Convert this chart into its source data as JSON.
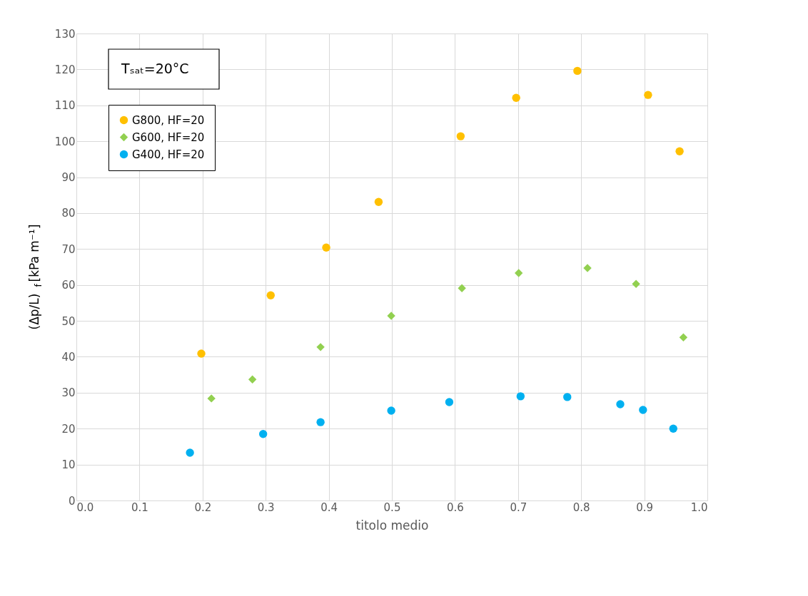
{
  "chart_data": {
    "type": "scatter",
    "xlabel": "titolo medio",
    "ylabel": "(Δp/L)$_{f}$  [kPa m⁻¹]",
    "annotations": [
      "Tₛₐₜ=20°C"
    ],
    "series": [
      {
        "name": "G800, HF=20",
        "color": "#ffc000",
        "marker": "circle",
        "x": [
          0.198,
          0.308,
          0.396,
          0.479,
          0.609,
          0.697,
          0.794,
          0.906,
          0.956
        ],
        "values": [
          40.9,
          57.1,
          70.4,
          83.1,
          101.4,
          112.1,
          119.6,
          112.9,
          97.2
        ]
      },
      {
        "name": "G600, HF=20",
        "color": "#92d050",
        "marker": "diamond",
        "x": [
          0.214,
          0.279,
          0.387,
          0.499,
          0.611,
          0.701,
          0.81,
          0.887,
          0.962
        ],
        "values": [
          28.4,
          33.7,
          42.7,
          51.4,
          59.1,
          63.3,
          64.7,
          60.3,
          45.4
        ]
      },
      {
        "name": "G400, HF=20",
        "color": "#00b0f0",
        "marker": "circle",
        "x": [
          0.18,
          0.296,
          0.387,
          0.499,
          0.591,
          0.704,
          0.778,
          0.862,
          0.898,
          0.946
        ],
        "values": [
          13.3,
          18.5,
          21.8,
          25.0,
          27.4,
          29.0,
          28.8,
          26.8,
          25.2,
          20.0
        ]
      }
    ],
    "xlim": [
      0,
      1
    ],
    "xticks": [
      {
        "value": 0,
        "label": "0.0"
      },
      0.1,
      0.2,
      0.3,
      0.4,
      0.5,
      0.6,
      0.7,
      0.8,
      0.9,
      {
        "value": 1,
        "label": "1.0"
      }
    ],
    "ylim": [
      0,
      130
    ],
    "yticks": [
      0,
      10,
      20,
      30,
      40,
      50,
      60,
      70,
      80,
      90,
      100,
      110,
      120,
      130
    ],
    "grid": true,
    "legend": "top left"
  }
}
